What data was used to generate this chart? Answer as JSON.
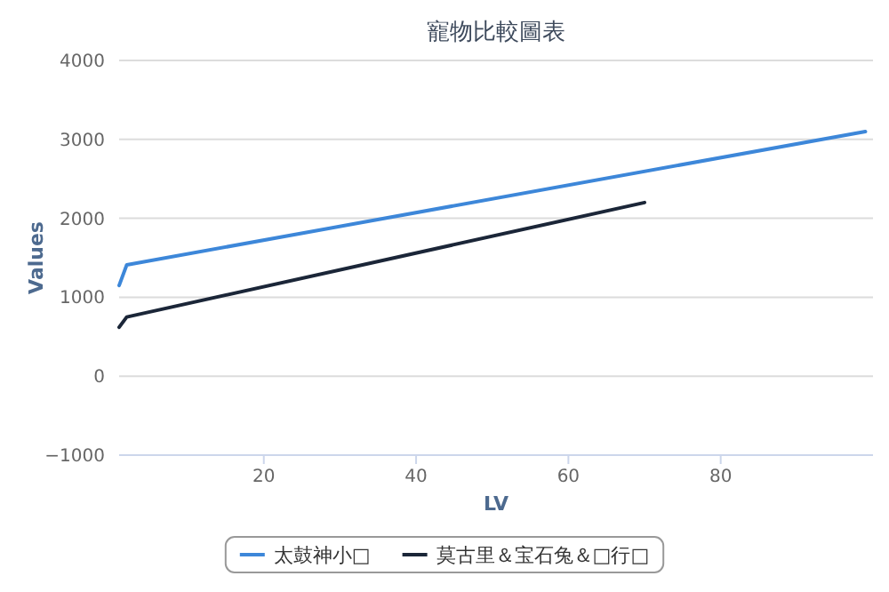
{
  "chart_data": {
    "type": "line",
    "title": "寵物比較圖表",
    "xlabel": "LV",
    "ylabel": "Values",
    "xlim": [
      1,
      100
    ],
    "xticks": [
      20,
      40,
      60,
      80
    ],
    "ylim": [
      -1000,
      4000
    ],
    "yticks": [
      -1000,
      0,
      1000,
      2000,
      3000,
      4000
    ],
    "grid": "y",
    "legend": "bottom",
    "marker": "none",
    "line_style": "solid",
    "series": [
      {
        "name": "太鼓神小□",
        "color": "#3d87d9",
        "x": [
          1,
          2,
          99
        ],
        "values": [
          1150,
          1410,
          3100
        ]
      },
      {
        "name": "莫古里＆宝石兔＆□行□",
        "color": "#1b2638",
        "x": [
          1,
          2,
          70
        ],
        "values": [
          620,
          750,
          2200
        ]
      }
    ]
  }
}
